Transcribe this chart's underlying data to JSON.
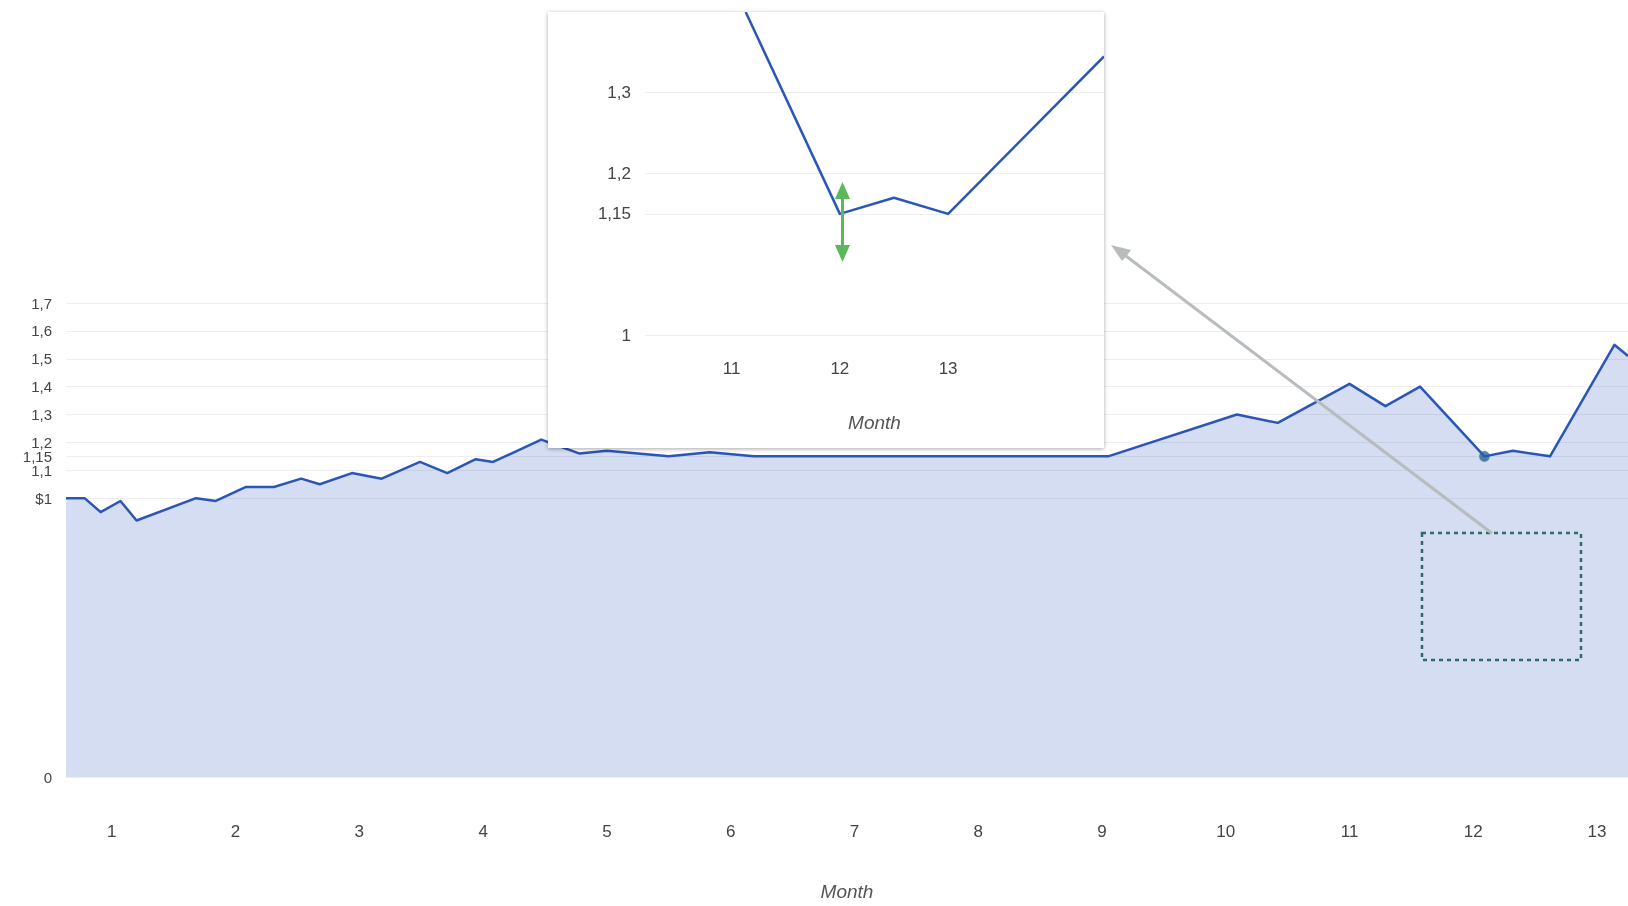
{
  "chart_data": [
    {
      "type": "area",
      "xlabel": "Month",
      "xlim": [
        0.63,
        13.25
      ],
      "xticks": [
        1,
        2,
        3,
        4,
        5,
        6,
        7,
        8,
        9,
        10,
        11,
        12,
        13
      ],
      "ylim": [
        0,
        1.7
      ],
      "yticks": [
        {
          "value": 0,
          "label": "0"
        },
        {
          "value": 1,
          "label": "$1"
        },
        {
          "value": 1.1,
          "label": "1,1"
        },
        {
          "value": 1.15,
          "label": "1,15"
        },
        {
          "value": 1.2,
          "label": "1,2"
        },
        {
          "value": 1.3,
          "label": "1,3"
        },
        {
          "value": 1.4,
          "label": "1,4"
        },
        {
          "value": 1.5,
          "label": "1,5"
        },
        {
          "value": 1.6,
          "label": "1,6"
        },
        {
          "value": 1.7,
          "label": "1,7"
        }
      ],
      "grid": "y",
      "series": [
        {
          "color": "#2a56b8",
          "x": [
            0.63,
            0.78,
            0.91,
            1.07,
            1.2,
            1.68,
            1.84,
            2.08,
            2.31,
            2.53,
            2.68,
            2.94,
            3.18,
            3.49,
            3.71,
            3.94,
            4.08,
            4.47,
            4.78,
            5.0,
            5.5,
            5.83,
            6.19,
            9.05,
            10.09,
            10.42,
            11.0,
            11.29,
            11.57,
            12.09,
            12.32,
            12.62,
            13.14,
            13.25
          ],
          "values": [
            1.0,
            1.0,
            0.95,
            0.99,
            0.92,
            1.0,
            0.99,
            1.04,
            1.04,
            1.07,
            1.05,
            1.09,
            1.07,
            1.13,
            1.09,
            1.14,
            1.13,
            1.21,
            1.16,
            1.17,
            1.15,
            1.165,
            1.15,
            1.15,
            1.3,
            1.27,
            1.41,
            1.33,
            1.4,
            1.15,
            1.17,
            1.15,
            1.55,
            1.51
          ]
        },
        {
          "type": "scatter",
          "color": "#2e6e82",
          "marker": "circle",
          "x": [
            12.09
          ],
          "values": [
            1.15
          ]
        }
      ]
    },
    {
      "type": "line",
      "xlabel": "Month",
      "xlim": [
        10.2,
        14.44
      ],
      "xticks": [
        11,
        12,
        13
      ],
      "ylim": [
        1,
        1.4
      ],
      "yticks": [
        1,
        {
          "value": 1.15,
          "label": "1,15"
        },
        {
          "value": 1.2,
          "label": "1,2"
        },
        {
          "value": 1.3,
          "label": "1,3"
        }
      ],
      "grid": "y",
      "series": [
        {
          "color": "#2a56b8",
          "x": [
            11.13,
            12,
            12.5,
            13,
            14.44
          ],
          "values": [
            1.4,
            1.15,
            1.17,
            1.15,
            1.345
          ]
        }
      ]
    }
  ]
}
